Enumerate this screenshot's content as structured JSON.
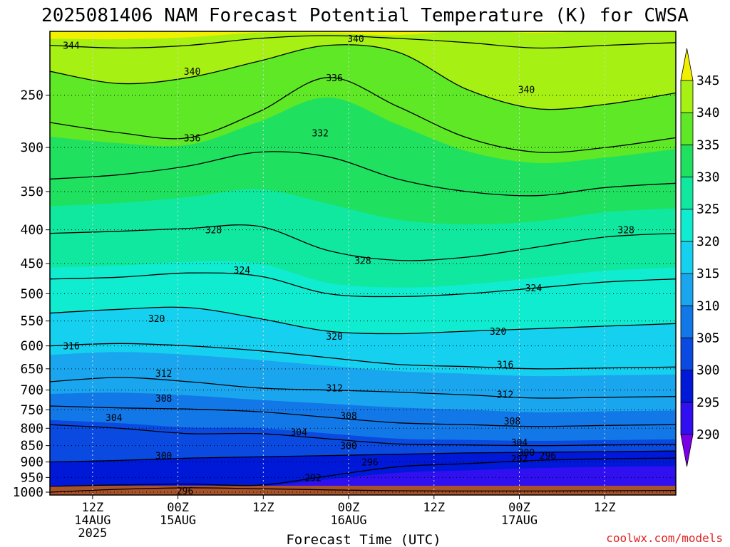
{
  "chart_data": {
    "type": "contour",
    "title": "2025081406 NAM Forecast Potential Temperature (K) for CWSA",
    "xlabel": "Forecast Time (UTC)",
    "ylabel": "",
    "y_scale": "log",
    "y_reversed": true,
    "y_ticks": [
      250,
      300,
      350,
      400,
      450,
      500,
      550,
      600,
      650,
      700,
      750,
      800,
      850,
      900,
      950,
      1000
    ],
    "ylim": [
      1010,
      200
    ],
    "x_ticks": [
      {
        "label": "12Z",
        "date": "14AUG",
        "year": "2025"
      },
      {
        "label": "00Z",
        "date": "15AUG",
        "year": ""
      },
      {
        "label": "12Z",
        "date": "",
        "year": ""
      },
      {
        "label": "00Z",
        "date": "16AUG",
        "year": ""
      },
      {
        "label": "12Z",
        "date": "",
        "year": ""
      },
      {
        "label": "00Z",
        "date": "17AUG",
        "year": ""
      },
      {
        "label": "12Z",
        "date": "",
        "year": ""
      }
    ],
    "x_tick_times": [
      "2025-08-14 12Z",
      "2025-08-15 00Z",
      "2025-08-15 12Z",
      "2025-08-16 00Z",
      "2025-08-16 12Z",
      "2025-08-17 00Z",
      "2025-08-17 12Z"
    ],
    "xlim": [
      "2025-08-14 06Z",
      "2025-08-17 22Z"
    ],
    "grid": true,
    "colorbar": {
      "levels": [
        290,
        295,
        300,
        305,
        310,
        315,
        320,
        325,
        330,
        335,
        340,
        345
      ],
      "colors": [
        "#7a00e8",
        "#3010f0",
        "#0018d8",
        "#0a4ae0",
        "#1278e8",
        "#1aa6ee",
        "#16d0f0",
        "#10ecd0",
        "#10e8a0",
        "#20e060",
        "#5ee826",
        "#a6f014",
        "#f0f000"
      ],
      "extend": "both"
    },
    "ground_color": "#a8522a",
    "isotherms": [
      {
        "level": 292,
        "pressure": [
          1000,
          990,
          985,
          988,
          992,
          995,
          996,
          996,
          995,
          994
        ]
      },
      {
        "level": 296,
        "pressure": [
          980,
          975,
          972,
          976,
          945,
          915,
          905,
          895,
          890,
          888
        ]
      },
      {
        "level": 300,
        "pressure": [
          900,
          895,
          888,
          884,
          880,
          876,
          872,
          870,
          868,
          866
        ]
      },
      {
        "level": 304,
        "pressure": [
          790,
          800,
          815,
          815,
          830,
          845,
          848,
          850,
          848,
          846
        ]
      },
      {
        "level": 308,
        "pressure": [
          740,
          745,
          748,
          755,
          770,
          785,
          790,
          795,
          792,
          790
        ]
      },
      {
        "level": 312,
        "pressure": [
          680,
          670,
          680,
          695,
          700,
          705,
          712,
          720,
          718,
          716
        ]
      },
      {
        "level": 316,
        "pressure": [
          600,
          595,
          600,
          610,
          625,
          640,
          645,
          650,
          648,
          646
        ]
      },
      {
        "level": 320,
        "pressure": [
          535,
          528,
          525,
          545,
          570,
          575,
          570,
          565,
          560,
          555
        ]
      },
      {
        "level": 324,
        "pressure": [
          475,
          472,
          465,
          470,
          500,
          505,
          500,
          490,
          480,
          475
        ]
      },
      {
        "level": 328,
        "pressure": [
          405,
          402,
          398,
          395,
          430,
          445,
          440,
          425,
          410,
          405
        ]
      },
      {
        "level": 332,
        "pressure": [
          335,
          330,
          320,
          305,
          310,
          335,
          350,
          355,
          345,
          340
        ]
      },
      {
        "level": 336,
        "pressure": [
          275,
          285,
          290,
          265,
          235,
          260,
          290,
          305,
          300,
          290
        ]
      },
      {
        "level": 340,
        "pressure": [
          230,
          240,
          235,
          222,
          210,
          215,
          245,
          262,
          258,
          248
        ]
      },
      {
        "level": 344,
        "pressure": [
          210,
          212,
          210,
          205,
          203,
          205,
          208,
          212,
          210,
          208
        ]
      }
    ],
    "contour_labels": [
      {
        "text": "344",
        "x": "2025-08-14 09Z",
        "p": 210
      },
      {
        "text": "340",
        "x": "2025-08-15 02Z",
        "p": 230
      },
      {
        "text": "340",
        "x": "2025-08-16 01Z",
        "p": 205
      },
      {
        "text": "336",
        "x": "2025-08-15 22Z",
        "p": 235
      },
      {
        "text": "340",
        "x": "2025-08-17 01Z",
        "p": 245
      },
      {
        "text": "336",
        "x": "2025-08-15 02Z",
        "p": 290
      },
      {
        "text": "332",
        "x": "2025-08-15 20Z",
        "p": 285
      },
      {
        "text": "328",
        "x": "2025-08-15 05Z",
        "p": 400
      },
      {
        "text": "328",
        "x": "2025-08-16 02Z",
        "p": 445
      },
      {
        "text": "328",
        "x": "2025-08-17 15Z",
        "p": 400
      },
      {
        "text": "324",
        "x": "2025-08-15 09Z",
        "p": 460
      },
      {
        "text": "324",
        "x": "2025-08-17 02Z",
        "p": 490
      },
      {
        "text": "320",
        "x": "2025-08-14 21Z",
        "p": 545
      },
      {
        "text": "320",
        "x": "2025-08-15 22Z",
        "p": 580
      },
      {
        "text": "320",
        "x": "2025-08-16 21Z",
        "p": 570
      },
      {
        "text": "316",
        "x": "2025-08-14 09Z",
        "p": 600
      },
      {
        "text": "316",
        "x": "2025-08-16 22Z",
        "p": 640
      },
      {
        "text": "312",
        "x": "2025-08-14 22Z",
        "p": 660
      },
      {
        "text": "312",
        "x": "2025-08-15 22Z",
        "p": 695
      },
      {
        "text": "312",
        "x": "2025-08-16 22Z",
        "p": 710
      },
      {
        "text": "308",
        "x": "2025-08-14 22Z",
        "p": 720
      },
      {
        "text": "308",
        "x": "2025-08-16 00Z",
        "p": 765
      },
      {
        "text": "308",
        "x": "2025-08-16 23Z",
        "p": 780
      },
      {
        "text": "304",
        "x": "2025-08-14 15Z",
        "p": 770
      },
      {
        "text": "304",
        "x": "2025-08-15 17Z",
        "p": 810
      },
      {
        "text": "304",
        "x": "2025-08-17 00Z",
        "p": 840
      },
      {
        "text": "300",
        "x": "2025-08-14 22Z",
        "p": 880
      },
      {
        "text": "300",
        "x": "2025-08-16 00Z",
        "p": 850
      },
      {
        "text": "300",
        "x": "2025-08-17 01Z",
        "p": 870
      },
      {
        "text": "296",
        "x": "2025-08-17 04Z",
        "p": 880
      },
      {
        "text": "296",
        "x": "2025-08-16 03Z",
        "p": 900
      },
      {
        "text": "292",
        "x": "2025-08-17 00Z",
        "p": 890
      },
      {
        "text": "292",
        "x": "2025-08-15 19Z",
        "p": 950
      },
      {
        "text": "296",
        "x": "2025-08-15 01Z",
        "p": 995
      }
    ],
    "credit": "coolwx.com/models"
  }
}
